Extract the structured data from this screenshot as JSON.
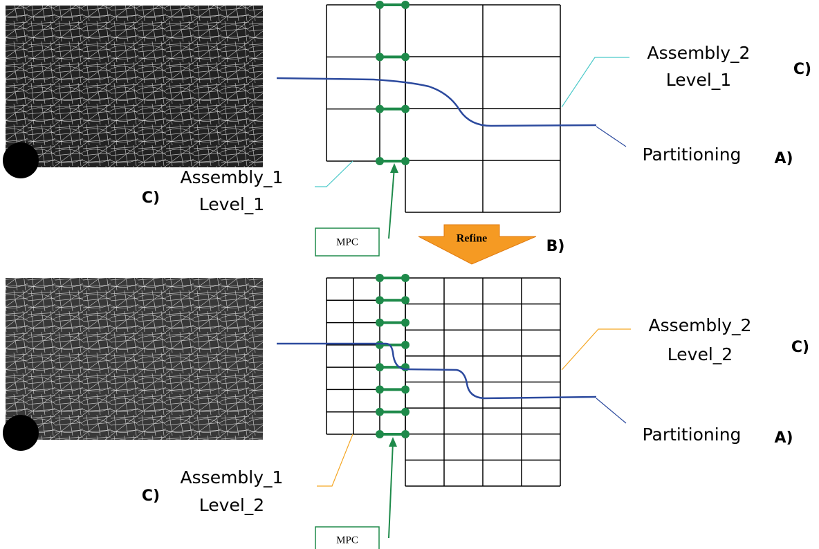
{
  "top": {
    "assembly_2": {
      "name": "Assembly_2",
      "level": "Level_1",
      "tag": "C)"
    },
    "partitioning": {
      "label": "Partitioning",
      "tag": "A)"
    },
    "assembly_1": {
      "name": "Assembly_1",
      "level": "Level_1",
      "tag": "C)"
    },
    "mpc": "MPC"
  },
  "refine": {
    "label": "Refine",
    "tag": "B)"
  },
  "bottom": {
    "assembly_2": {
      "name": "Assembly_2",
      "level": "Level_2",
      "tag": "C)"
    },
    "partitioning": {
      "label": "Partitioning",
      "tag": "A)"
    },
    "assembly_1": {
      "name": "Assembly_1",
      "level": "Level_2",
      "tag": "C)"
    },
    "mpc": "MPC"
  }
}
